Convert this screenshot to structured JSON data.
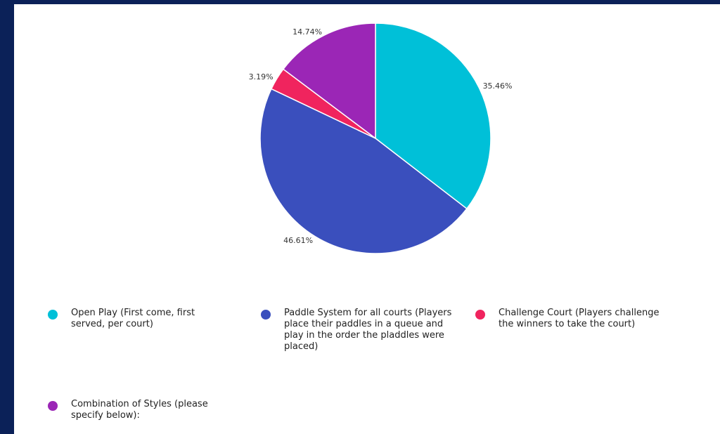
{
  "chart_data": {
    "type": "pie",
    "slices": [
      {
        "label": "Open Play (First come, first served, per court)",
        "value": 35.46,
        "value_label": "35.46%",
        "color": "#00c0d8"
      },
      {
        "label": "Paddle System for all courts (Players place their paddles in a queue and play in the order the pladdles were placed)",
        "value": 46.61,
        "value_label": "46.61%",
        "color": "#3a4fbd"
      },
      {
        "label": "Challenge Court (Players challenge the winners to take the court)",
        "value": 3.19,
        "value_label": "3.19%",
        "color": "#f0245e"
      },
      {
        "label": "Combination of Styles (please specify below):",
        "value": 14.74,
        "value_label": "14.74%",
        "color": "#9b26b6"
      }
    ],
    "start_angle": "12 o'clock",
    "direction": "clockwise",
    "legend_position": "bottom"
  },
  "colors": {
    "frame_background": "#0b2158",
    "panel_background": "#ffffff"
  }
}
